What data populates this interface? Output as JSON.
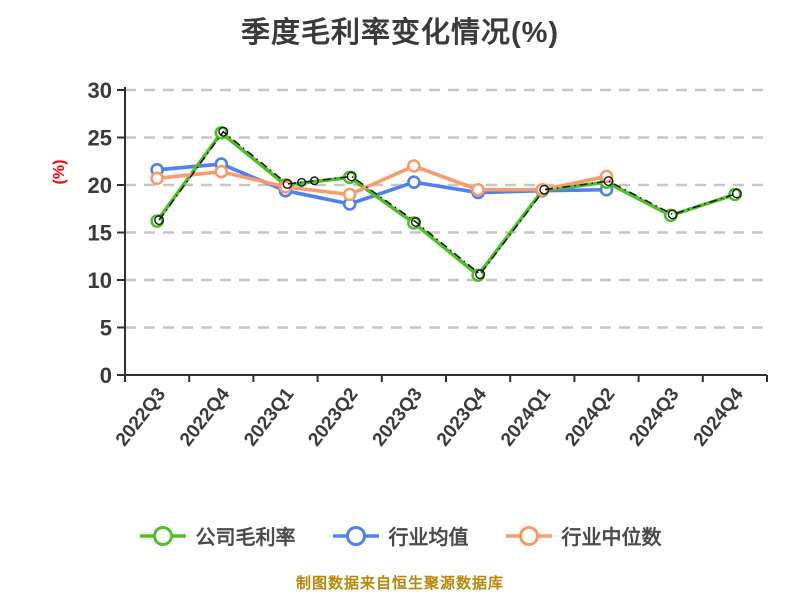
{
  "title": "季度毛利率变化情况(%)",
  "y_axis_unit": "(%)",
  "footer_note": "制图数据来自恒生聚源数据库",
  "colors": {
    "company_green": "#4FBE28",
    "industry_avg_blue": "#4E80F0",
    "industry_median_orange": "#F89B6C",
    "overlay_black": "#161616",
    "gridline_gray": "#c6c6c6",
    "axis_dark": "#2f2f2f",
    "tick_text": "#3a3a3a",
    "unit_red": "#ff0000",
    "footer_gold": "#b8860b"
  },
  "chart_data": {
    "type": "line",
    "title": "季度毛利率变化情况(%)",
    "categories": [
      "2022Q3",
      "2022Q4",
      "2023Q1",
      "2023Q2",
      "2023Q3",
      "2023Q4",
      "2024Q1",
      "2024Q2",
      "2024Q3",
      "2024Q4"
    ],
    "series": [
      {
        "name": "公司毛利率",
        "color": "#4FBE28",
        "values": [
          16.2,
          25.5,
          20.0,
          20.8,
          16.0,
          10.5,
          19.4,
          20.3,
          16.8,
          19.0
        ]
      },
      {
        "name": "行业均值",
        "color": "#4E80F0",
        "values": [
          21.6,
          22.2,
          19.4,
          18.0,
          20.3,
          19.2,
          19.4,
          19.5,
          null,
          null
        ]
      },
      {
        "name": "行业中位数",
        "color": "#F89B6C",
        "values": [
          20.7,
          21.4,
          19.8,
          19.0,
          22.0,
          19.5,
          19.5,
          20.9,
          null,
          null
        ]
      }
    ],
    "overlay": {
      "description": "black dash-dot highlight line with open-circle markers tracing the 公司毛利率 series",
      "follows_series": 0,
      "color": "#161616"
    },
    "ylabel": "(%)",
    "ylim": [
      0,
      30
    ],
    "yticks": [
      0,
      5,
      10,
      15,
      20,
      25,
      30
    ],
    "grid": "horizontal dashed",
    "legend_position": "bottom",
    "marker": "circle, white fill, colored ring"
  }
}
